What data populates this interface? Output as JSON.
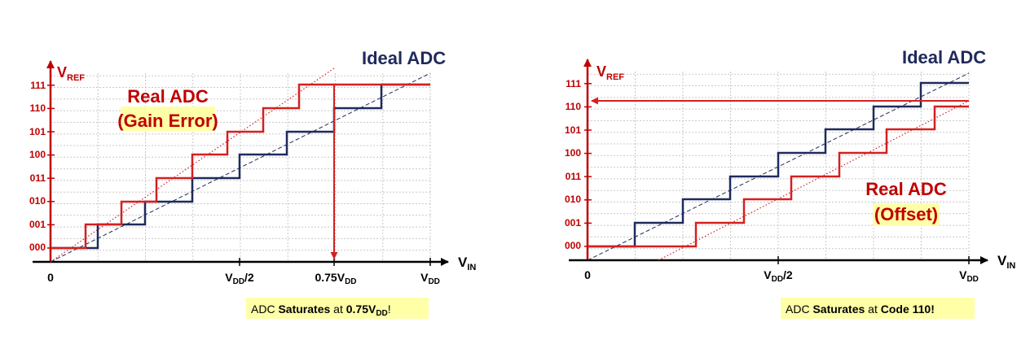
{
  "colors": {
    "ideal": "#1f2a5c",
    "real": "#d42020",
    "axis": "#000000",
    "label_red": "#c00000",
    "grid": "#c8c8c8",
    "highlight": "#ffffa8"
  },
  "codes": [
    "000",
    "001",
    "010",
    "011",
    "100",
    "101",
    "110",
    "111"
  ],
  "left": {
    "title_ideal": "Ideal ADC",
    "title_real_1": "Real ADC",
    "title_real_2": "(Gain Error)",
    "y_axis": "V",
    "y_sub": "REF",
    "x_axis": "V",
    "x_sub": "IN",
    "x_zero": "0",
    "x_half": "V",
    "x_half_sub": "DD",
    "x_half_suffix": "/2",
    "x_075": "0.75V",
    "x_075_sub": "DD",
    "x_vdd": "V",
    "x_vdd_sub": "DD",
    "note_1": "ADC ",
    "note_2": "Saturates",
    "note_3": " at ",
    "note_4": "0.75V",
    "note_5": "DD",
    "note_6": "!"
  },
  "right": {
    "title_ideal": "Ideal ADC",
    "title_real_1": "Real ADC",
    "title_real_2": "(Offset)",
    "y_axis": "V",
    "y_sub": "REF",
    "x_axis": "V",
    "x_sub": "IN",
    "x_zero": "0",
    "x_half": "V",
    "x_half_sub": "DD",
    "x_half_suffix": "/2",
    "x_vdd": "V",
    "x_vdd_sub": "DD",
    "note_1": "ADC ",
    "note_2": "Saturates",
    "note_3": " at ",
    "note_4": "Code 110!"
  }
}
